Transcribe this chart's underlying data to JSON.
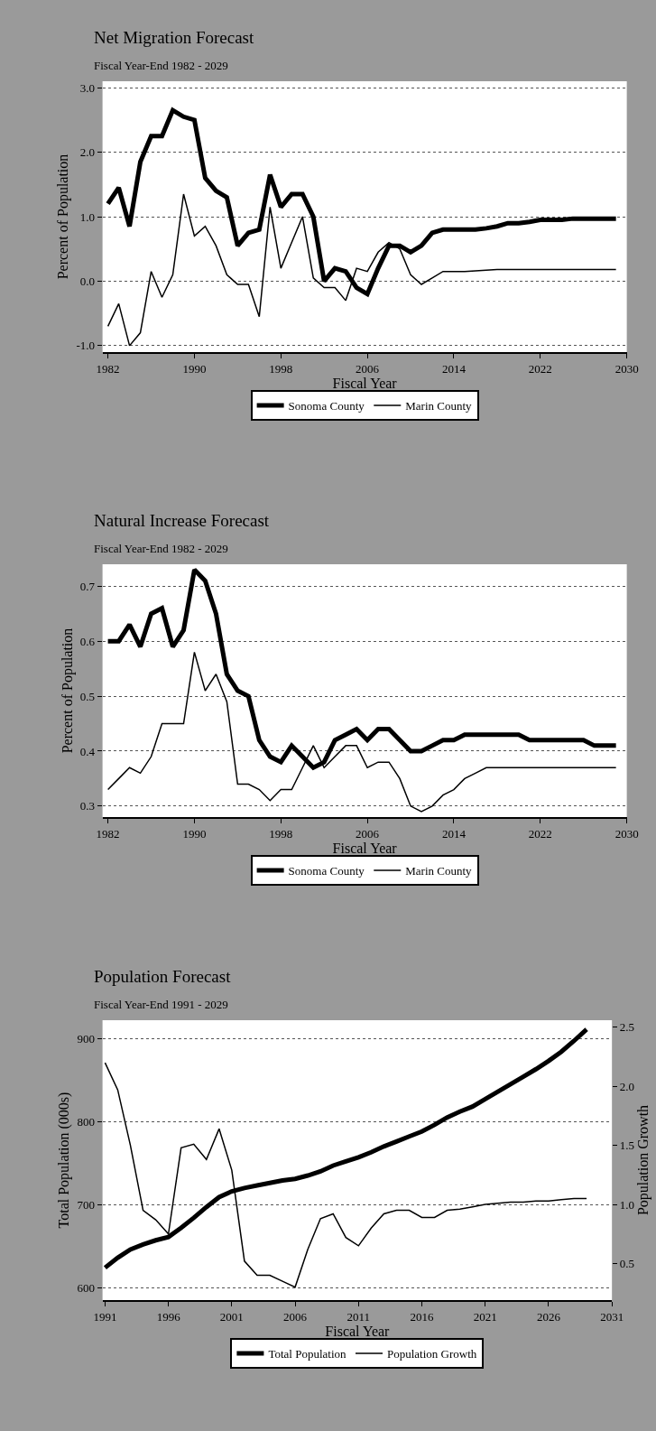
{
  "chart_data": [
    {
      "type": "line",
      "title": "Net Migration Forecast",
      "subtitle": "Fiscal Year-End 1982 - 2029",
      "xlabel": "Fiscal Year",
      "ylabel": "Percent of Population",
      "x": [
        1982,
        1983,
        1984,
        1985,
        1986,
        1987,
        1988,
        1989,
        1990,
        1991,
        1992,
        1993,
        1994,
        1995,
        1996,
        1997,
        1998,
        1999,
        2000,
        2001,
        2002,
        2003,
        2004,
        2005,
        2006,
        2007,
        2008,
        2009,
        2010,
        2011,
        2012,
        2013,
        2014,
        2015,
        2016,
        2017,
        2018,
        2019,
        2020,
        2021,
        2022,
        2023,
        2024,
        2025,
        2026,
        2027,
        2028,
        2029
      ],
      "series": [
        {
          "name": "Sonoma County",
          "color": "#000000",
          "values": [
            1.2,
            1.45,
            0.85,
            1.85,
            2.25,
            2.25,
            2.65,
            2.55,
            2.5,
            1.6,
            1.4,
            1.3,
            0.55,
            0.75,
            0.8,
            1.65,
            1.15,
            1.35,
            1.35,
            1.0,
            0.0,
            0.2,
            0.15,
            -0.1,
            -0.2,
            0.2,
            0.55,
            0.55,
            0.45,
            0.55,
            0.75,
            0.8,
            0.8,
            0.8,
            0.8,
            0.82,
            0.85,
            0.9,
            0.9,
            0.92,
            0.95,
            0.95,
            0.95,
            0.97,
            0.97,
            0.97,
            0.97,
            0.97
          ]
        },
        {
          "name": "Marin County",
          "color": "#000000",
          "values": [
            -0.7,
            -0.35,
            -1.0,
            -0.8,
            0.15,
            -0.25,
            0.1,
            1.35,
            0.7,
            0.85,
            0.55,
            0.1,
            -0.05,
            -0.05,
            -0.55,
            1.15,
            0.2,
            0.6,
            1.0,
            0.05,
            -0.1,
            -0.1,
            -0.3,
            0.2,
            0.15,
            0.45,
            0.6,
            0.5,
            0.1,
            -0.05,
            0.05,
            0.15,
            0.15,
            0.15,
            0.16,
            0.17,
            0.18,
            0.18,
            0.18,
            0.18,
            0.18,
            0.18,
            0.18,
            0.18,
            0.18,
            0.18,
            0.18,
            0.18
          ]
        }
      ],
      "xlim": [
        1981.5,
        2030
      ],
      "xticks": [
        1982,
        1990,
        1998,
        2006,
        2014,
        2022,
        2030
      ],
      "ylim": [
        -1.1,
        3.1
      ],
      "yticks": [
        {
          "value": 3,
          "label": "3.0"
        },
        {
          "value": 2,
          "label": "2.0"
        },
        {
          "value": 1,
          "label": "1.0"
        },
        {
          "value": 0,
          "label": "0.0"
        },
        {
          "value": -1,
          "label": "-1.0"
        }
      ],
      "grid": "y",
      "legend": "bottom",
      "marker": "none",
      "line_style": "solid"
    },
    {
      "type": "line",
      "title": "Natural Increase Forecast",
      "subtitle": "Fiscal Year-End 1982 - 2029",
      "xlabel": "Fiscal Year",
      "ylabel": "Percent of Population",
      "x": [
        1982,
        1983,
        1984,
        1985,
        1986,
        1987,
        1988,
        1989,
        1990,
        1991,
        1992,
        1993,
        1994,
        1995,
        1996,
        1997,
        1998,
        1999,
        2000,
        2001,
        2002,
        2003,
        2004,
        2005,
        2006,
        2007,
        2008,
        2009,
        2010,
        2011,
        2012,
        2013,
        2014,
        2015,
        2016,
        2017,
        2018,
        2019,
        2020,
        2021,
        2022,
        2023,
        2024,
        2025,
        2026,
        2027,
        2028,
        2029
      ],
      "series": [
        {
          "name": "Sonoma County",
          "color": "#000000",
          "values": [
            0.6,
            0.6,
            0.63,
            0.59,
            0.65,
            0.66,
            0.59,
            0.62,
            0.73,
            0.71,
            0.65,
            0.54,
            0.51,
            0.5,
            0.42,
            0.39,
            0.38,
            0.41,
            0.39,
            0.37,
            0.38,
            0.42,
            0.43,
            0.44,
            0.42,
            0.44,
            0.44,
            0.42,
            0.4,
            0.4,
            0.41,
            0.42,
            0.42,
            0.43,
            0.43,
            0.43,
            0.43,
            0.43,
            0.43,
            0.42,
            0.42,
            0.42,
            0.42,
            0.42,
            0.42,
            0.41,
            0.41,
            0.41
          ]
        },
        {
          "name": "Marin County",
          "color": "#000000",
          "values": [
            0.33,
            0.35,
            0.37,
            0.36,
            0.39,
            0.45,
            0.45,
            0.45,
            0.58,
            0.51,
            0.54,
            0.49,
            0.34,
            0.34,
            0.33,
            0.31,
            0.33,
            0.33,
            0.37,
            0.41,
            0.37,
            0.39,
            0.41,
            0.41,
            0.37,
            0.38,
            0.38,
            0.35,
            0.3,
            0.29,
            0.3,
            0.32,
            0.33,
            0.35,
            0.36,
            0.37,
            0.37,
            0.37,
            0.37,
            0.37,
            0.37,
            0.37,
            0.37,
            0.37,
            0.37,
            0.37,
            0.37,
            0.37
          ]
        }
      ],
      "xlim": [
        1981.5,
        2030
      ],
      "xticks": [
        1982,
        1990,
        1998,
        2006,
        2014,
        2022,
        2030
      ],
      "ylim": [
        0.28,
        0.74
      ],
      "yticks": [
        0.3,
        0.4,
        0.5,
        0.6,
        0.7
      ],
      "grid": "y",
      "legend": "bottom",
      "marker": "none",
      "line_style": "solid"
    },
    {
      "type": "line",
      "title": "Population Forecast",
      "subtitle": "Fiscal Year-End 1991 - 2029",
      "xlabel": "Fiscal Year",
      "ylabel": "Total Population (000s)",
      "y2label": "Population Growth",
      "x": [
        1991,
        1992,
        1993,
        1994,
        1995,
        1996,
        1997,
        1998,
        1999,
        2000,
        2001,
        2002,
        2003,
        2004,
        2005,
        2006,
        2007,
        2008,
        2009,
        2010,
        2011,
        2012,
        2013,
        2014,
        2015,
        2016,
        2017,
        2018,
        2019,
        2020,
        2021,
        2022,
        2023,
        2024,
        2025,
        2026,
        2027,
        2028,
        2029
      ],
      "series": [
        {
          "name": "Total Population",
          "color": "#000000",
          "values": [
            624,
            636,
            646,
            652,
            657,
            661,
            672,
            684,
            697,
            709,
            716,
            720,
            723,
            726,
            729,
            731,
            735,
            740,
            747,
            752,
            757,
            763,
            770,
            776,
            782,
            788,
            796,
            805,
            812,
            818,
            827,
            836,
            845,
            854,
            863,
            873,
            884,
            897,
            911
          ]
        },
        {
          "name": "Population Growth",
          "color": "#000000",
          "axis": "y2",
          "values": [
            2.2,
            1.97,
            1.5,
            0.95,
            0.87,
            0.75,
            1.48,
            1.51,
            1.38,
            1.64,
            1.29,
            0.52,
            0.4,
            0.4,
            0.35,
            0.3,
            0.62,
            0.88,
            0.92,
            0.72,
            0.65,
            0.8,
            0.92,
            0.95,
            0.95,
            0.89,
            0.89,
            0.95,
            0.96,
            0.98,
            1.0,
            1.01,
            1.02,
            1.02,
            1.03,
            1.03,
            1.04,
            1.05,
            1.05
          ]
        }
      ],
      "xlim": [
        1990.8,
        2031
      ],
      "xticks": [
        1991,
        1996,
        2001,
        2006,
        2011,
        2016,
        2021,
        2026,
        2031
      ],
      "ylim": [
        585,
        922
      ],
      "yticks": [
        600,
        700,
        800,
        900
      ],
      "y2lim": [
        0.19,
        2.56
      ],
      "y2ticks": [
        0.5,
        {
          "value": 1,
          "label": "1.0"
        },
        1.5,
        {
          "value": 2,
          "label": "2.0"
        },
        2.5
      ],
      "grid": "y",
      "legend": "bottom",
      "marker": "none",
      "line_style": "solid"
    }
  ]
}
